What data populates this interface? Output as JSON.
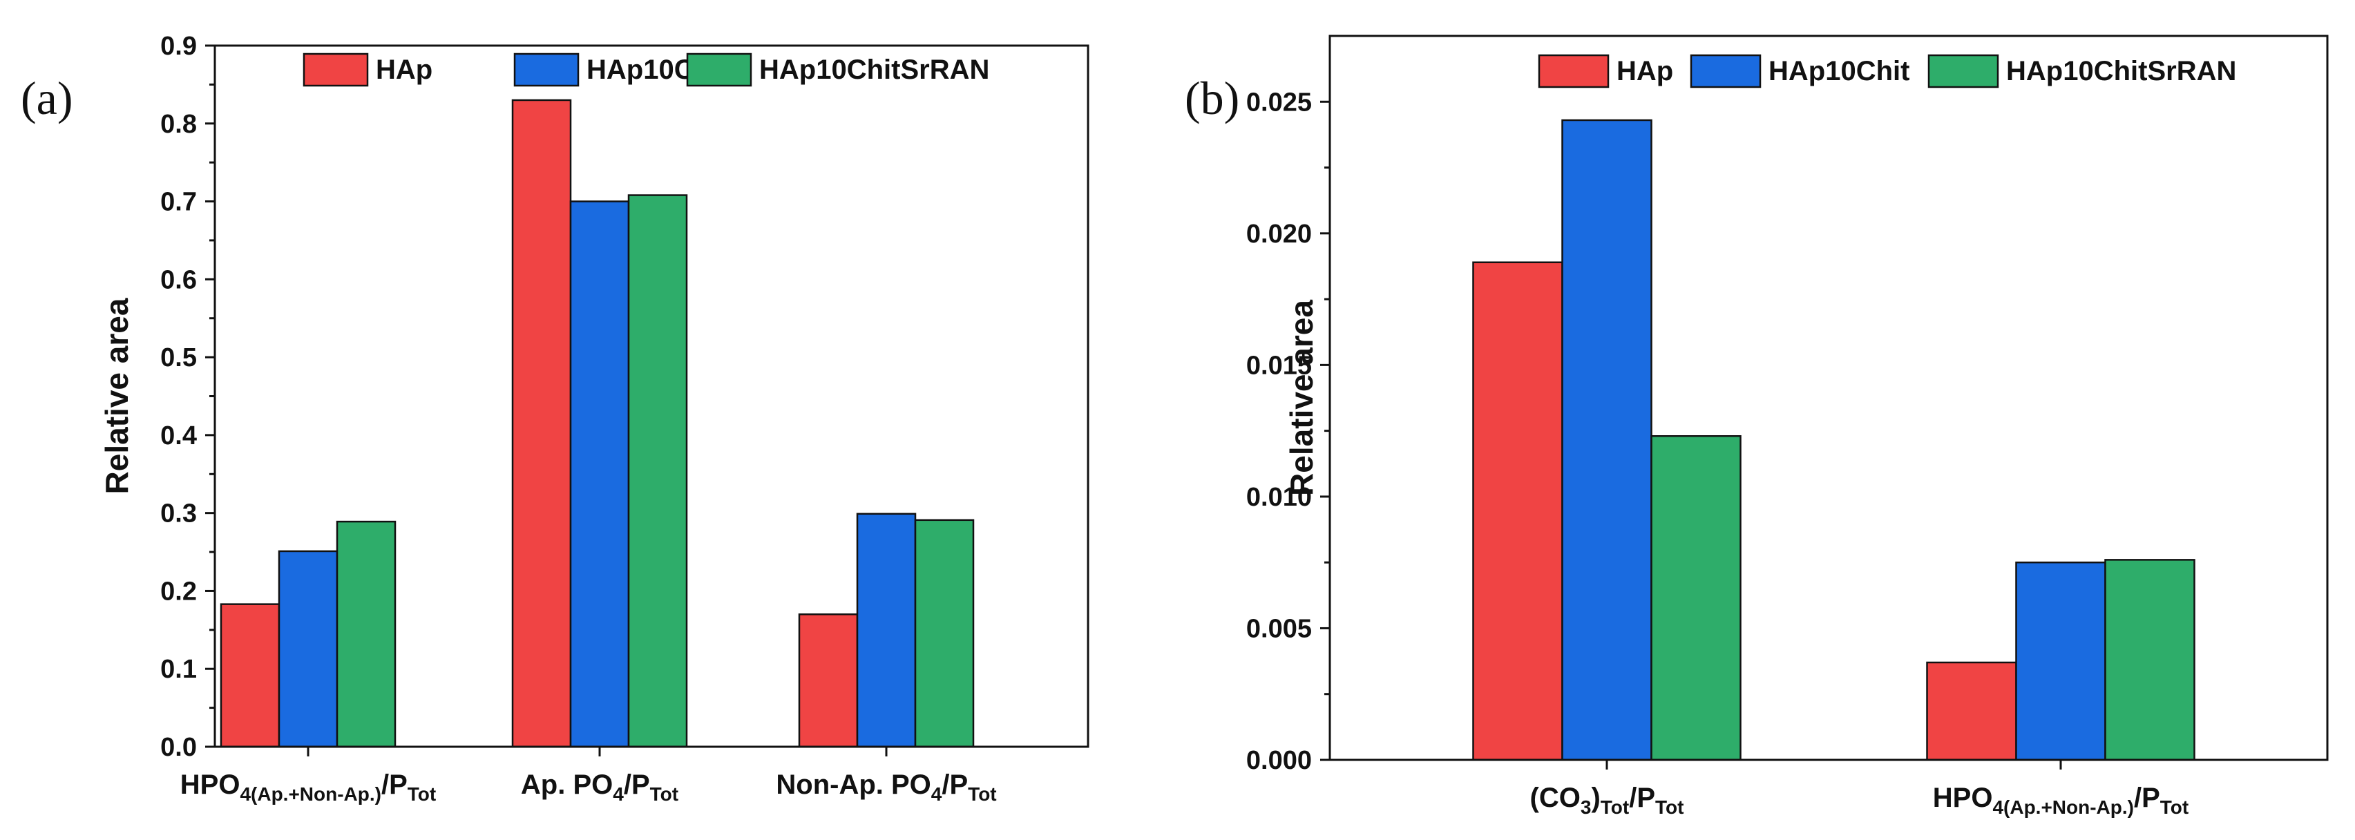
{
  "colors": {
    "HAp": "#f04444",
    "HAp10Chit": "#1a6be0",
    "HAp10ChitSrRAN": "#2ead6a"
  },
  "chart_data": [
    {
      "type": "bar",
      "panel_label": "(a)",
      "ylabel": "Relative area",
      "xlabel": "",
      "ylim": [
        0,
        0.9
      ],
      "yticks": [
        "0.0",
        "0.1",
        "0.2",
        "0.3",
        "0.4",
        "0.5",
        "0.6",
        "0.7",
        "0.8",
        "0.9"
      ],
      "legend_position": "top",
      "categories": [
        {
          "parts": [
            {
              "t": "HPO"
            },
            {
              "t": "4(Ap.+Non-Ap.)",
              "sub": true
            },
            {
              "t": "/P"
            },
            {
              "t": "Tot",
              "sub": true
            }
          ]
        },
        {
          "parts": [
            {
              "t": "Ap. PO"
            },
            {
              "t": "4",
              "sub": true
            },
            {
              "t": "/P"
            },
            {
              "t": "Tot",
              "sub": true
            }
          ]
        },
        {
          "parts": [
            {
              "t": "Non-Ap. PO"
            },
            {
              "t": "4",
              "sub": true
            },
            {
              "t": "/P"
            },
            {
              "t": "Tot",
              "sub": true
            }
          ]
        }
      ],
      "series": [
        {
          "name": "HAp",
          "values": [
            0.183,
            0.83,
            0.17
          ]
        },
        {
          "name": "HAp10Chit",
          "values": [
            0.251,
            0.7,
            0.299
          ]
        },
        {
          "name": "HAp10ChitSrRAN",
          "values": [
            0.289,
            0.708,
            0.291
          ]
        }
      ]
    },
    {
      "type": "bar",
      "panel_label": "(b)",
      "ylabel": "Relative area",
      "xlabel": "",
      "ylim": [
        0,
        0.0275
      ],
      "yticks": [
        "0.000",
        "0.005",
        "0.010",
        "0.015",
        "0.020",
        "0.025"
      ],
      "legend_position": "top",
      "categories": [
        {
          "parts": [
            {
              "t": "(CO"
            },
            {
              "t": "3",
              "sub": true
            },
            {
              "t": ")"
            },
            {
              "t": "Tot",
              "sub": true
            },
            {
              "t": "/P"
            },
            {
              "t": "Tot",
              "sub": true
            }
          ]
        },
        {
          "parts": [
            {
              "t": "HPO"
            },
            {
              "t": "4(Ap.+Non-Ap.)",
              "sub": true
            },
            {
              "t": "/P"
            },
            {
              "t": "Tot",
              "sub": true
            }
          ]
        }
      ],
      "series": [
        {
          "name": "HAp",
          "values": [
            0.0189,
            0.0037
          ]
        },
        {
          "name": "HAp10Chit",
          "values": [
            0.0243,
            0.0075
          ]
        },
        {
          "name": "HAp10ChitSrRAN",
          "values": [
            0.0123,
            0.0076
          ]
        }
      ]
    }
  ]
}
